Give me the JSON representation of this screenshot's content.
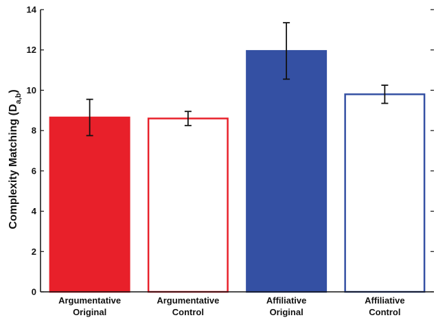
{
  "chart_data": {
    "type": "bar",
    "title": "",
    "xlabel": "",
    "ylabel": "Complexity Matching (D",
    "ylabel_subscript": "a,b",
    "ylabel_suffix": ")",
    "ylim": [
      0,
      14
    ],
    "yticks": [
      "0",
      "2",
      "4",
      "6",
      "8",
      "10",
      "12",
      "14"
    ],
    "categories": [
      [
        "Argumentative",
        "Original"
      ],
      [
        "Argumentative",
        "Control"
      ],
      [
        "Affiliative",
        "Original"
      ],
      [
        "Affiliative",
        "Control"
      ]
    ],
    "values": [
      8.65,
      8.6,
      11.95,
      9.8
    ],
    "error": [
      0.9,
      0.35,
      1.4,
      0.45
    ],
    "styles": [
      {
        "fill": "#e8202a",
        "stroke": "#e8202a"
      },
      {
        "fill": "#ffffff",
        "stroke": "#e8202a"
      },
      {
        "fill": "#3450a3",
        "stroke": "#3450a3"
      },
      {
        "fill": "#ffffff",
        "stroke": "#3450a3"
      }
    ],
    "grid": false
  }
}
